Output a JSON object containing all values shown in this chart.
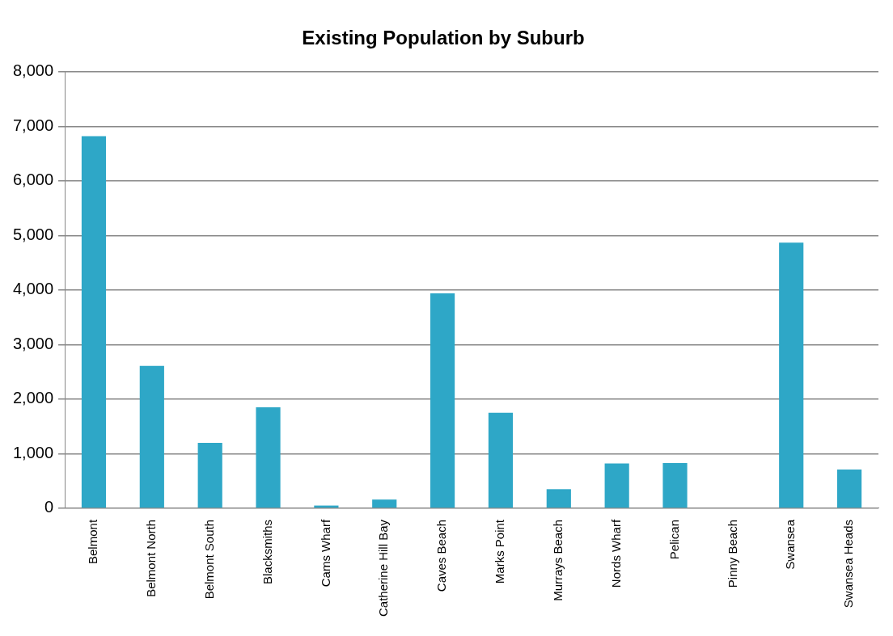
{
  "chart_data": {
    "type": "bar",
    "title": "Existing Population by Suburb",
    "categories": [
      "Belmont",
      "Belmont North",
      "Belmont South",
      "Blacksmiths",
      "Cams Wharf",
      "Catherine Hill Bay",
      "Caves Beach",
      "Marks Point",
      "Murrays Beach",
      "Nords Wharf",
      "Pelican",
      "Pinny Beach",
      "Swansea",
      "Swansea Heads"
    ],
    "values": [
      6820,
      2610,
      1200,
      1850,
      50,
      160,
      3940,
      1750,
      350,
      820,
      830,
      0,
      4870,
      710
    ],
    "color": "#2ea7c7",
    "ylim": [
      0,
      8000
    ],
    "yticks": [
      {
        "value": 0,
        "label": "0"
      },
      {
        "value": 1000,
        "label": "1,000"
      },
      {
        "value": 2000,
        "label": "2,000"
      },
      {
        "value": 3000,
        "label": "3,000"
      },
      {
        "value": 4000,
        "label": "4,000"
      },
      {
        "value": 5000,
        "label": "5,000"
      },
      {
        "value": 6000,
        "label": "6,000"
      },
      {
        "value": 7000,
        "label": "7,000"
      },
      {
        "value": 8000,
        "label": "8,000"
      }
    ],
    "grid": "y",
    "legend": false
  }
}
